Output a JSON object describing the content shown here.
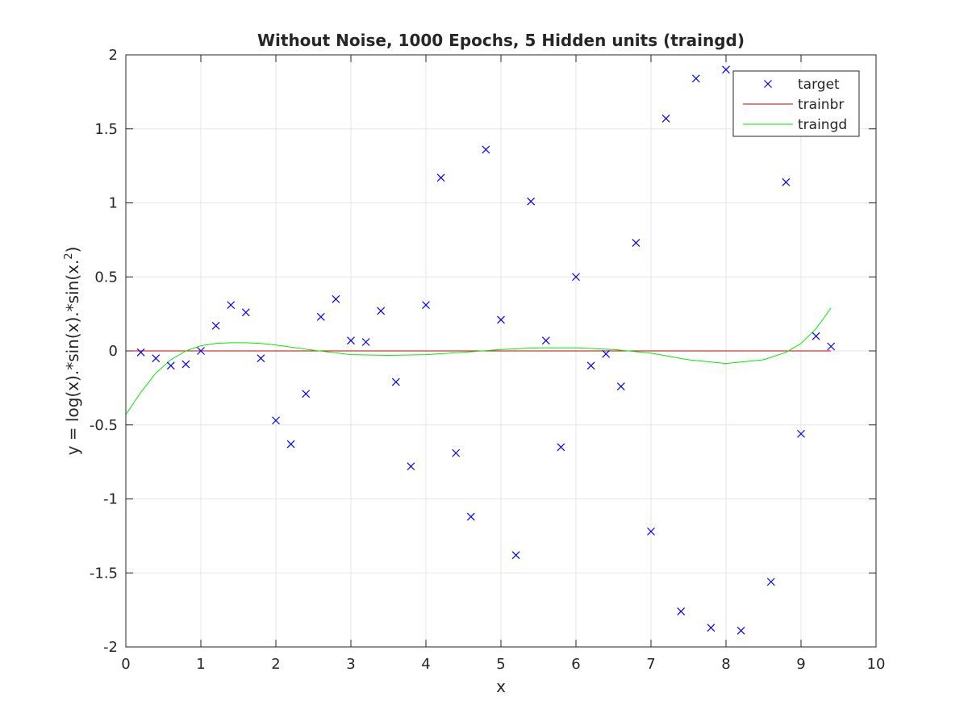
{
  "chart_data": {
    "type": "line",
    "title": "Without Noise, 1000 Epochs, 5 Hidden units (traingd)",
    "xlabel": "x",
    "ylabel_main": "y = log(x).*sin(x).*sin(x.",
    "ylabel_sup": "2",
    "ylabel_end": ")",
    "xlim": [
      0,
      10
    ],
    "ylim": [
      -2,
      2
    ],
    "xticks": [
      0,
      1,
      2,
      3,
      4,
      5,
      6,
      7,
      8,
      9,
      10
    ],
    "yticks": [
      -2,
      -1.5,
      -1,
      -0.5,
      0,
      0.5,
      1,
      1.5,
      2
    ],
    "ytick_labels": [
      "-2",
      "-1.5",
      "-1",
      "-0.5",
      "0",
      "0.5",
      "1",
      "1.5",
      "2"
    ],
    "grid": true,
    "legend_position": "top-right",
    "series": [
      {
        "name": "target",
        "kind": "scatter",
        "marker": "x",
        "color": "#0000ff",
        "x": [
          0.2,
          0.4,
          0.6,
          0.8,
          1.0,
          1.2,
          1.4,
          1.6,
          1.8,
          2.0,
          2.2,
          2.4,
          2.6,
          2.8,
          3.0,
          3.2,
          3.4,
          3.6,
          3.8,
          4.0,
          4.2,
          4.4,
          4.6,
          4.8,
          5.0,
          5.2,
          5.4,
          5.6,
          5.8,
          6.0,
          6.2,
          6.4,
          6.6,
          6.8,
          7.0,
          7.2,
          7.4,
          7.6,
          7.8,
          8.0,
          8.2,
          8.4,
          8.6,
          8.8,
          9.0,
          9.2,
          9.4
        ],
        "y": [
          -0.01,
          -0.05,
          -0.1,
          -0.09,
          0.0,
          0.17,
          0.31,
          0.26,
          -0.05,
          -0.47,
          -0.63,
          -0.29,
          0.23,
          0.35,
          0.07,
          0.06,
          0.27,
          -0.21,
          -0.78,
          0.31,
          1.17,
          -0.69,
          -1.12,
          1.36,
          0.21,
          -1.38,
          1.01,
          0.07,
          -0.65,
          0.5,
          -0.1,
          -0.02,
          -0.24,
          0.73,
          -1.22,
          1.57,
          -1.76,
          1.84,
          -1.87,
          1.9,
          -1.89,
          null,
          -1.56,
          1.14,
          -0.56,
          0.1,
          0.03
        ]
      },
      {
        "name": "trainbr",
        "kind": "line",
        "color": "#cc0000",
        "x": [
          0,
          9.4
        ],
        "y": [
          0,
          0
        ]
      },
      {
        "name": "traingd",
        "kind": "line",
        "color": "#00ee00",
        "x": [
          0,
          0.2,
          0.4,
          0.6,
          0.8,
          1.0,
          1.2,
          1.4,
          1.6,
          1.8,
          2.0,
          2.5,
          3.0,
          3.5,
          4.0,
          4.5,
          5.0,
          5.5,
          6.0,
          6.5,
          7.0,
          7.5,
          8.0,
          8.5,
          8.8,
          9.0,
          9.2,
          9.4
        ],
        "y": [
          -0.43,
          -0.28,
          -0.15,
          -0.06,
          0.0,
          0.035,
          0.05,
          0.055,
          0.055,
          0.05,
          0.04,
          0.005,
          -0.025,
          -0.03,
          -0.025,
          -0.01,
          0.01,
          0.02,
          0.02,
          0.01,
          -0.015,
          -0.06,
          -0.085,
          -0.06,
          -0.01,
          0.05,
          0.15,
          0.29
        ]
      }
    ]
  }
}
